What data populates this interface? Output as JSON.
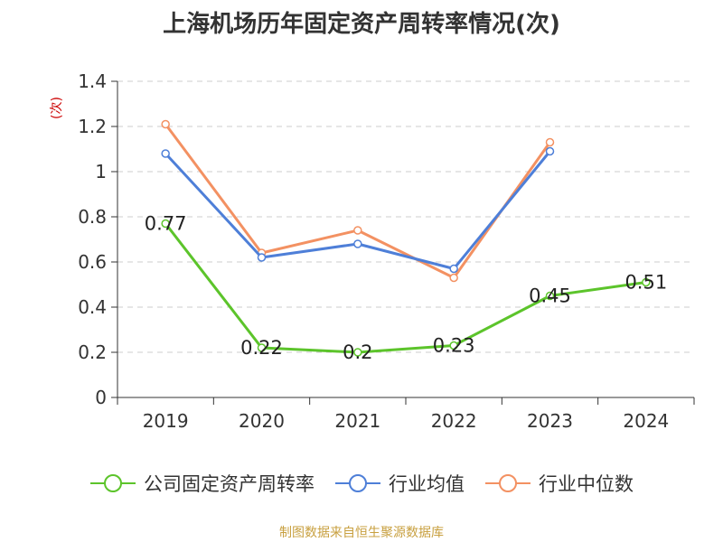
{
  "title": "上海机场历年固定资产周转率情况(次)",
  "source": "制图数据来自恒生聚源数据库",
  "chart_data": {
    "type": "line",
    "title": "上海机场历年固定资产周转率情况(次)",
    "ylabel": "(次)",
    "ylim": [
      0,
      1.4
    ],
    "yticks": [
      "0",
      "0.2",
      "0.4",
      "0.6",
      "0.8",
      "1",
      "1.2",
      "1.4"
    ],
    "categories": [
      "2019",
      "2020",
      "2021",
      "2022",
      "2023",
      "2024"
    ],
    "grid": true,
    "legend_position": "bottom",
    "series": [
      {
        "name": "公司固定资产周转率",
        "color": "#5cc42b",
        "labels": [
          "0.77",
          "0.22",
          "0.2",
          "0.23",
          "0.45",
          "0.51"
        ],
        "values": [
          0.77,
          0.22,
          0.2,
          0.23,
          0.45,
          0.51
        ]
      },
      {
        "name": "行业均值",
        "color": "#4e7fd8",
        "values": [
          1.08,
          0.62,
          0.68,
          0.57,
          1.09,
          null
        ]
      },
      {
        "name": "行业中位数",
        "color": "#f39162",
        "values": [
          1.21,
          0.64,
          0.74,
          0.53,
          1.13,
          null
        ]
      }
    ]
  }
}
